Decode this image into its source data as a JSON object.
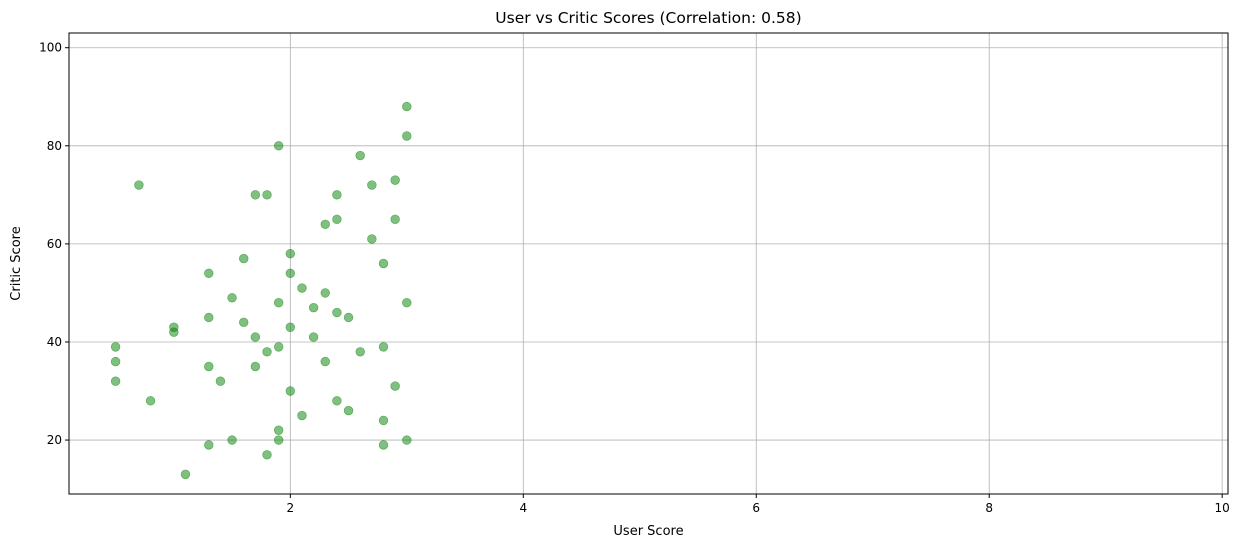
{
  "chart_data": {
    "type": "scatter",
    "title": "User vs Critic Scores (Correlation: 0.58)",
    "xlabel": "User Score",
    "ylabel": "Critic Score",
    "xlim": [
      0.1,
      10.05
    ],
    "ylim": [
      9,
      103
    ],
    "xticks": [
      2,
      4,
      6,
      8,
      10
    ],
    "yticks": [
      20,
      40,
      60,
      80,
      100
    ],
    "grid": true,
    "point_color": "#008000",
    "point_alpha": 0.5,
    "correlation": 0.58,
    "series": [
      {
        "values": [
          [
            0.5,
            39
          ],
          [
            0.5,
            36
          ],
          [
            0.5,
            32
          ],
          [
            0.7,
            72
          ],
          [
            0.8,
            28
          ],
          [
            1.0,
            43
          ],
          [
            1.0,
            42
          ],
          [
            1.1,
            13
          ],
          [
            1.3,
            54
          ],
          [
            1.3,
            45
          ],
          [
            1.3,
            35
          ],
          [
            1.3,
            19
          ],
          [
            1.4,
            32
          ],
          [
            1.5,
            49
          ],
          [
            1.5,
            20
          ],
          [
            1.6,
            57
          ],
          [
            1.6,
            44
          ],
          [
            1.7,
            70
          ],
          [
            1.7,
            35
          ],
          [
            1.7,
            41
          ],
          [
            1.8,
            70
          ],
          [
            1.8,
            38
          ],
          [
            1.8,
            17
          ],
          [
            1.9,
            80
          ],
          [
            1.9,
            48
          ],
          [
            1.9,
            39
          ],
          [
            1.9,
            22
          ],
          [
            1.9,
            20
          ],
          [
            2.0,
            58
          ],
          [
            2.0,
            54
          ],
          [
            2.0,
            43
          ],
          [
            2.0,
            30
          ],
          [
            2.1,
            51
          ],
          [
            2.1,
            25
          ],
          [
            2.2,
            47
          ],
          [
            2.2,
            41
          ],
          [
            2.3,
            64
          ],
          [
            2.3,
            50
          ],
          [
            2.3,
            36
          ],
          [
            2.4,
            70
          ],
          [
            2.4,
            65
          ],
          [
            2.4,
            46
          ],
          [
            2.4,
            28
          ],
          [
            2.5,
            45
          ],
          [
            2.5,
            26
          ],
          [
            2.6,
            78
          ],
          [
            2.6,
            38
          ],
          [
            2.7,
            72
          ],
          [
            2.7,
            61
          ],
          [
            2.8,
            56
          ],
          [
            2.8,
            39
          ],
          [
            2.8,
            24
          ],
          [
            2.8,
            19
          ],
          [
            2.9,
            73
          ],
          [
            2.9,
            65
          ],
          [
            2.9,
            31
          ],
          [
            3.0,
            88
          ],
          [
            3.0,
            82
          ],
          [
            3.0,
            48
          ],
          [
            3.0,
            20
          ]
        ]
      }
    ]
  }
}
